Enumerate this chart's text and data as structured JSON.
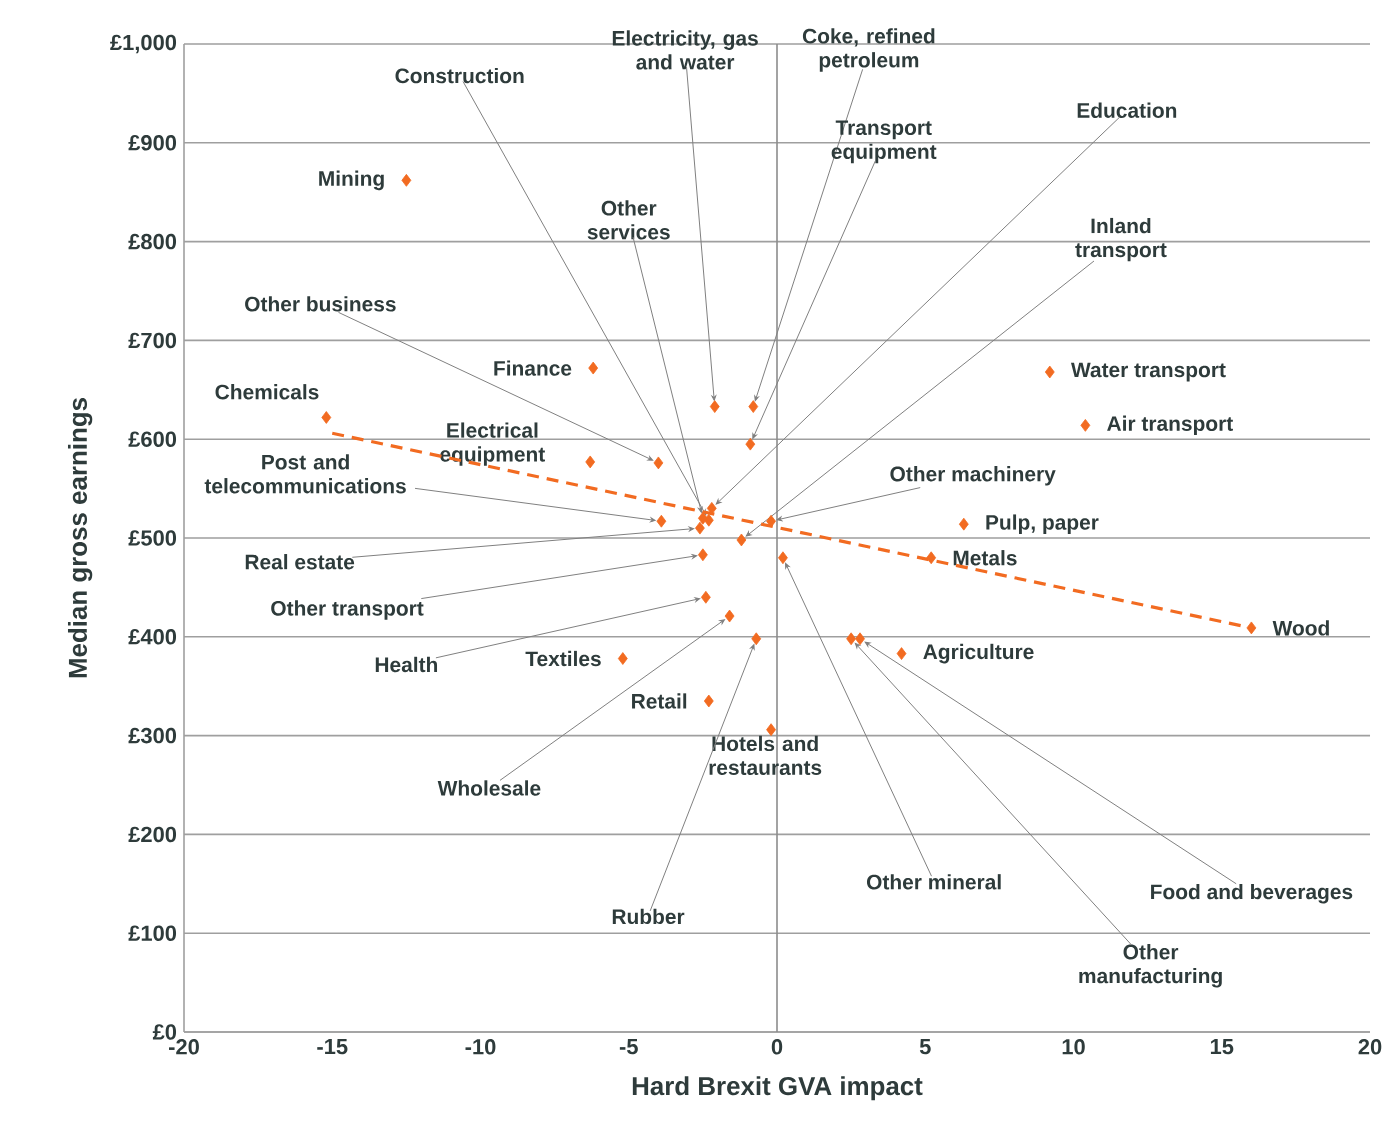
{
  "chart_data": {
    "type": "scatter",
    "xlabel": "Hard Brexit GVA impact",
    "ylabel": "Median gross earnings",
    "xlim": [
      -20,
      20
    ],
    "xticks": [
      -20,
      -15,
      -10,
      -5,
      0,
      5,
      10,
      15,
      20
    ],
    "ylim": [
      0,
      1000
    ],
    "yticks": [
      {
        "value": 0,
        "label": "£0"
      },
      {
        "value": 100,
        "label": "£100"
      },
      {
        "value": 200,
        "label": "£200"
      },
      {
        "value": 300,
        "label": "£300"
      },
      {
        "value": 400,
        "label": "£400"
      },
      {
        "value": 500,
        "label": "£500"
      },
      {
        "value": 600,
        "label": "£600"
      },
      {
        "value": 700,
        "label": "£700"
      },
      {
        "value": 800,
        "label": "£800"
      },
      {
        "value": 900,
        "label": "£900"
      },
      {
        "value": 1000,
        "label": "£1,000"
      }
    ],
    "grid": "y",
    "ref_lines": [
      {
        "axis": "x",
        "value": 0,
        "color": "#8c8c8c"
      }
    ],
    "series": [
      {
        "marker": "diamond",
        "color": "#f26b21",
        "x": [
          -12.5,
          -6.2,
          -15.2,
          -6.3,
          9.2,
          10.4,
          6.3,
          5.2,
          16.0,
          4.2,
          -5.2,
          -2.3,
          -0.2,
          -2.3,
          -2.1,
          -0.8,
          -0.9,
          -2.2,
          -1.2,
          -2.5,
          -4.0,
          -3.9,
          -2.6,
          -2.5,
          -2.4,
          -1.6,
          -0.7,
          0.2,
          2.8,
          2.5,
          -0.2
        ],
        "values": [
          862,
          672,
          622,
          577,
          668,
          614,
          514,
          480,
          409,
          383,
          378,
          335,
          306,
          518,
          633,
          633,
          595,
          530,
          498,
          520,
          576,
          517,
          510,
          483,
          440,
          421,
          398,
          480,
          398,
          398,
          517
        ]
      },
      {
        "type": "line",
        "line_style": "dashed",
        "marker": "none",
        "color": "#f26b21",
        "x": [
          -15.0,
          16.0
        ],
        "values": [
          606,
          409
        ]
      }
    ],
    "annotations": [
      {
        "text": "Mining",
        "x": -12.5,
        "y": 862
      },
      {
        "text": "Finance",
        "x": -6.2,
        "y": 672
      },
      {
        "text": "Chemicals",
        "x": -15.2,
        "y": 622
      },
      {
        "text": "Electrical equipment",
        "x": -6.3,
        "y": 577
      },
      {
        "text": "Water transport",
        "x": 9.2,
        "y": 668
      },
      {
        "text": "Air transport",
        "x": 10.4,
        "y": 614
      },
      {
        "text": "Pulp, paper",
        "x": 6.3,
        "y": 514
      },
      {
        "text": "Metals",
        "x": 5.2,
        "y": 480
      },
      {
        "text": "Wood",
        "x": 16.0,
        "y": 409
      },
      {
        "text": "Agriculture",
        "x": 4.2,
        "y": 383
      },
      {
        "text": "Textiles",
        "x": -5.2,
        "y": 378
      },
      {
        "text": "Retail",
        "x": -2.3,
        "y": 335
      },
      {
        "text": "Hotels and restaurants",
        "x": -0.2,
        "y": 306
      },
      {
        "text": "Construction",
        "x": -2.3,
        "y": 518
      },
      {
        "text": "Electricity, gas and water",
        "x": -2.1,
        "y": 633
      },
      {
        "text": "Coke, refined petroleum",
        "x": -0.8,
        "y": 633
      },
      {
        "text": "Transport equipment",
        "x": -0.9,
        "y": 595
      },
      {
        "text": "Education",
        "x": -2.2,
        "y": 530
      },
      {
        "text": "Inland transport",
        "x": -1.2,
        "y": 498
      },
      {
        "text": "Other services",
        "x": -2.5,
        "y": 520
      },
      {
        "text": "Other business",
        "x": -4.0,
        "y": 576
      },
      {
        "text": "Post and telecommunications",
        "x": -3.9,
        "y": 517
      },
      {
        "text": "Real estate",
        "x": -2.6,
        "y": 510
      },
      {
        "text": "Other transport",
        "x": -2.5,
        "y": 483
      },
      {
        "text": "Health",
        "x": -2.4,
        "y": 440
      },
      {
        "text": "Wholesale",
        "x": -1.6,
        "y": 421
      },
      {
        "text": "Rubber",
        "x": -0.7,
        "y": 398
      },
      {
        "text": "Other mineral",
        "x": 0.2,
        "y": 480
      },
      {
        "text": "Food and beverages",
        "x": 2.8,
        "y": 398
      },
      {
        "text": "Other manufacturing",
        "x": 2.5,
        "y": 398
      },
      {
        "text": "Other machinery",
        "x": -0.2,
        "y": 517
      }
    ]
  }
}
